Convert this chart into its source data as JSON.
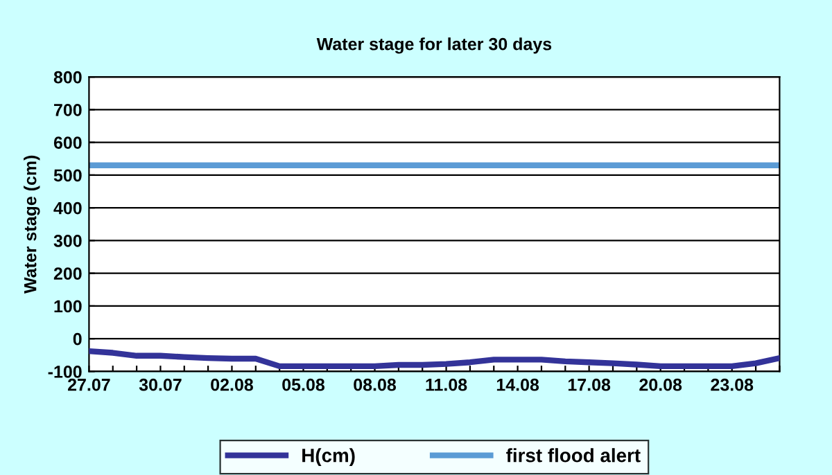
{
  "chart_data": {
    "type": "line",
    "title": "Water stage for later 30 days",
    "ylabel": "Water stage (cm)",
    "categories": [
      "27.07",
      null,
      null,
      "30.07",
      null,
      null,
      "02.08",
      null,
      null,
      "05.08",
      null,
      null,
      "08.08",
      null,
      null,
      "11.08",
      null,
      null,
      "14.08",
      null,
      null,
      "17.08",
      null,
      null,
      "20.08",
      null,
      null,
      "23.08",
      null,
      null
    ],
    "series": [
      {
        "name": "H(cm)",
        "color": "#333399",
        "values": [
          -38,
          -43,
          -52,
          -52,
          -56,
          -59,
          -61,
          -61,
          -84,
          -84,
          -84,
          -84,
          -84,
          -80,
          -80,
          -77,
          -72,
          -64,
          -64,
          -64,
          -69,
          -72,
          -75,
          -79,
          -84,
          -84,
          -84,
          -84,
          -75,
          -59
        ]
      }
    ],
    "ref_lines": [
      {
        "axis": "y",
        "value": 530,
        "label": "first flood alert",
        "color": "#5b9bd5",
        "line_style": "solid"
      }
    ],
    "ylim": [
      -100,
      800
    ],
    "yticks": [
      -100,
      0,
      100,
      200,
      300,
      400,
      500,
      600,
      700,
      800
    ],
    "grid": "y",
    "legend": "bottom",
    "marker": "none",
    "line_style": "solid"
  }
}
